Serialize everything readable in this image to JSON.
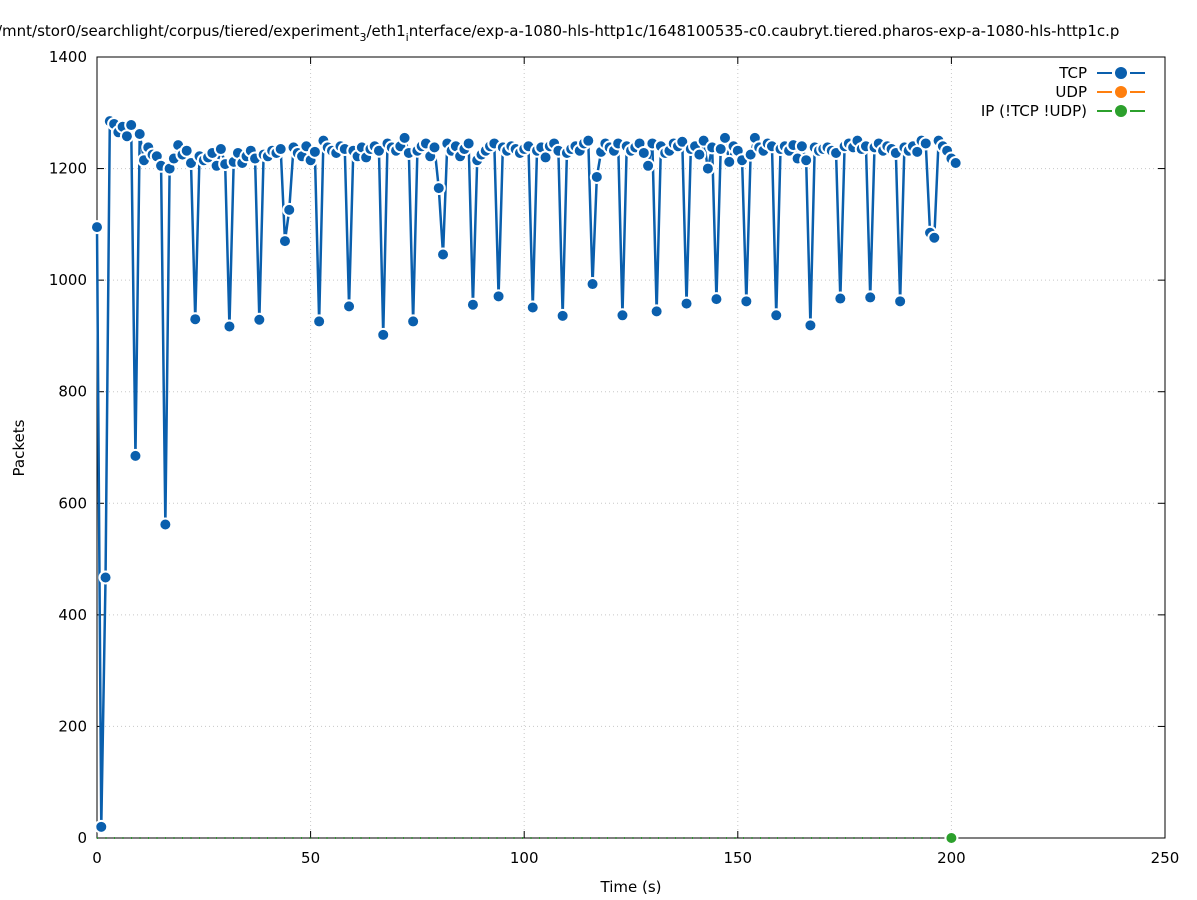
{
  "chart_data": {
    "type": "line",
    "title_parts": [
      "/mnt/stor0/searchlight/corpus/tiered/experiment",
      "3",
      "/eth1",
      "i",
      "nterface/exp-a-1080-hls-http1c/1648100535-c0.caubryt.tiered.pharos-exp-a-1080-hls-http1c.p"
    ],
    "xlabel": "Time (s)",
    "ylabel": "Packets",
    "xlim": [
      0,
      250
    ],
    "ylim": [
      0,
      1400
    ],
    "xticks": [
      0,
      50,
      100,
      150,
      200,
      250
    ],
    "yticks": [
      0,
      200,
      400,
      600,
      800,
      1000,
      1200,
      1400
    ],
    "grid": true,
    "legend_position": "top-right",
    "colors": {
      "TCP": "#0a5fad",
      "UDP": "#ff7f0e",
      "IP": "#2ca02c"
    },
    "series": [
      {
        "name": "TCP",
        "x_start": 0,
        "x_step": 1,
        "values": [
          1095,
          20,
          467,
          1285,
          1280,
          1265,
          1275,
          1258,
          1278,
          685,
          1262,
          1215,
          1238,
          1225,
          1222,
          1205,
          562,
          1200,
          1218,
          1242,
          1225,
          1232,
          1210,
          930,
          1222,
          1215,
          1220,
          1228,
          1205,
          1235,
          1208,
          917,
          1212,
          1228,
          1210,
          1222,
          1232,
          1218,
          929,
          1225,
          1222,
          1232,
          1228,
          1235,
          1070,
          1126,
          1238,
          1228,
          1222,
          1240,
          1215,
          1230,
          926,
          1250,
          1238,
          1232,
          1228,
          1240,
          1235,
          953,
          1232,
          1222,
          1238,
          1220,
          1235,
          1240,
          1232,
          902,
          1245,
          1238,
          1232,
          1240,
          1255,
          1228,
          926,
          1232,
          1240,
          1245,
          1222,
          1238,
          1165,
          1046,
          1245,
          1232,
          1240,
          1222,
          1235,
          1245,
          956,
          1215,
          1225,
          1232,
          1240,
          1245,
          971,
          1238,
          1232,
          1240,
          1235,
          1228,
          1235,
          1240,
          951,
          1232,
          1238,
          1220,
          1240,
          1245,
          1232,
          936,
          1228,
          1235,
          1240,
          1232,
          1245,
          1250,
          993,
          1185,
          1230,
          1245,
          1238,
          1232,
          1245,
          937,
          1240,
          1232,
          1238,
          1245,
          1228,
          1205,
          1245,
          944,
          1240,
          1228,
          1232,
          1245,
          1240,
          1248,
          958,
          1235,
          1240,
          1225,
          1250,
          1200,
          1238,
          966,
          1235,
          1255,
          1212,
          1240,
          1232,
          1215,
          962,
          1225,
          1255,
          1238,
          1232,
          1245,
          1240,
          937,
          1235,
          1240,
          1232,
          1242,
          1218,
          1240,
          1215,
          919,
          1238,
          1232,
          1235,
          1238,
          1232,
          1228,
          967,
          1240,
          1245,
          1238,
          1250,
          1235,
          1240,
          969,
          1238,
          1245,
          1232,
          1240,
          1235,
          1228,
          962,
          1238,
          1232,
          1240,
          1230,
          1250,
          1245,
          1085,
          1076,
          1250,
          1240,
          1232,
          1218,
          1210
        ]
      },
      {
        "name": "UDP",
        "x_start": 0,
        "x_step": 1,
        "values": []
      },
      {
        "name": "IP (!TCP  !UDP)",
        "x_start": 200,
        "x_step": 1,
        "values": [
          0
        ]
      }
    ]
  }
}
